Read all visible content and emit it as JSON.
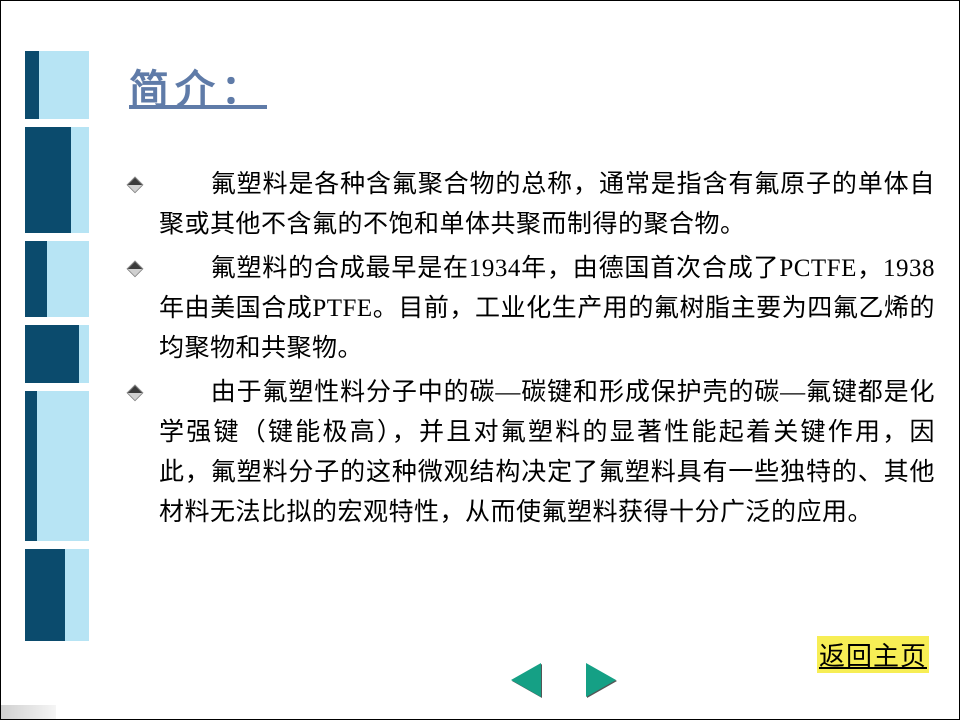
{
  "colors": {
    "background": "#ffffff",
    "title_color": "#5f7ba8",
    "body_text": "#000000",
    "deco_dark": "#0b4b6d",
    "deco_light": "#b7e4f4",
    "arrow_fill": "#15a085",
    "backlink_bg": "#f7ee55",
    "border": "#000000"
  },
  "typography": {
    "title_fontsize": 40,
    "body_fontsize": 25,
    "line_height": 40,
    "font_family": "SimSun"
  },
  "decoration": {
    "blocks": [
      {
        "height": 68,
        "dark_w": 14,
        "light_w": 50
      },
      {
        "height": 106,
        "dark_w": 46,
        "light_w": 18
      },
      {
        "height": 76,
        "dark_w": 22,
        "light_w": 42
      },
      {
        "height": 58,
        "dark_w": 54,
        "light_w": 10
      },
      {
        "height": 150,
        "dark_w": 12,
        "light_w": 52
      },
      {
        "height": 92,
        "dark_w": 40,
        "light_w": 24
      }
    ]
  },
  "title": "简介：",
  "paragraphs": [
    "　　氟塑料是各种含氟聚合物的总称，通常是指含有氟原子的单体自聚或其他不含氟的不饱和单体共聚而制得的聚合物。",
    "　　氟塑料的合成最早是在1934年，由德国首次合成了PCTFE，1938年由美国合成PTFE。目前，工业化生产用的氟树脂主要为四氟乙烯的均聚物和共聚物。",
    "　　由于氟塑性料分子中的碳—碳键和形成保护壳的碳—氟键都是化学强键（键能极高），并且对氟塑料的显著性能起着关键作用，因此，氟塑料分子的这种微观结构决定了氟塑料具有一些独特的、其他材料无法比拟的宏观特性，从而使氟塑料获得十分广泛的应用。"
  ],
  "nav": {
    "prev_label": "上一页",
    "next_label": "下一页",
    "back_label": "返回主页"
  }
}
